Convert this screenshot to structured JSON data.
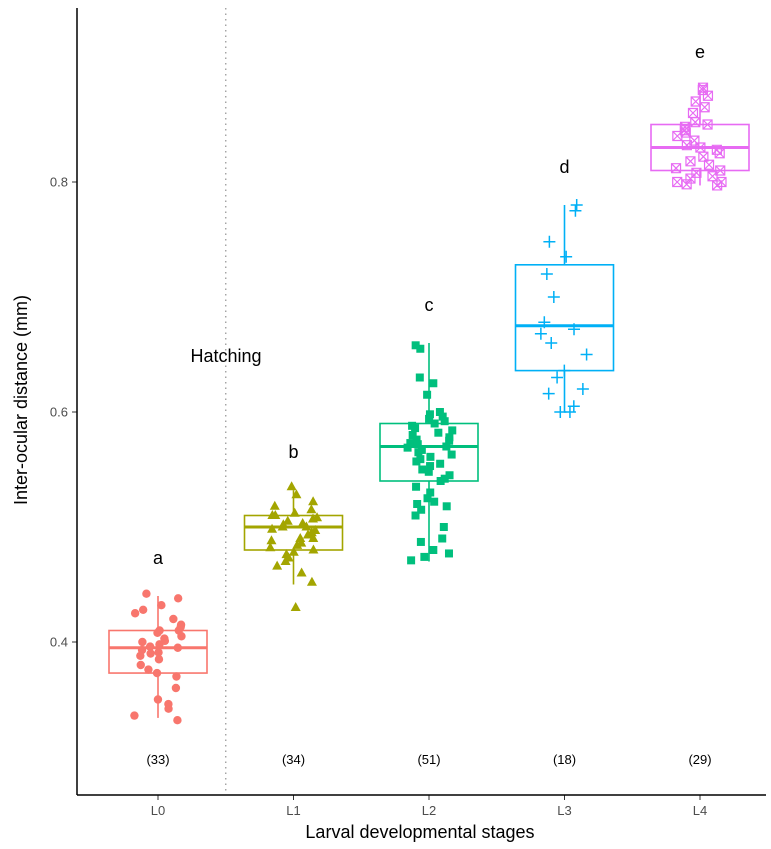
{
  "chart_data": {
    "type": "box",
    "xlabel": "Larval developmental stages",
    "ylabel": "Inter-ocular distance (mm)",
    "ylim": [
      0.29,
      0.945
    ],
    "yticks": [
      0.4,
      0.6,
      0.8
    ],
    "ytick_labels": [
      "0.4",
      "0.6",
      "0.8"
    ],
    "categories": [
      "L0",
      "L1",
      "L2",
      "L3",
      "L4"
    ],
    "grid": false,
    "legend": "none",
    "annotation": {
      "text": "Hatching",
      "divider_between": [
        "L0",
        "L1"
      ]
    },
    "groups": [
      {
        "name": "L0",
        "color": "#f8766d",
        "marker": "circle",
        "letter": "a",
        "n_label": "(33)",
        "box": {
          "min": 0.334,
          "q1": 0.373,
          "median": 0.395,
          "q3": 0.41,
          "max": 0.44
        },
        "points": [
          0.442,
          0.438,
          0.432,
          0.428,
          0.425,
          0.42,
          0.415,
          0.413,
          0.41,
          0.41,
          0.408,
          0.405,
          0.403,
          0.401,
          0.4,
          0.398,
          0.396,
          0.395,
          0.393,
          0.391,
          0.39,
          0.388,
          0.385,
          0.38,
          0.376,
          0.373,
          0.37,
          0.36,
          0.35,
          0.346,
          0.342,
          0.336,
          0.332
        ]
      },
      {
        "name": "L1",
        "color": "#a3a500",
        "marker": "triangle",
        "letter": "b",
        "n_label": "(34)",
        "box": {
          "min": 0.45,
          "q1": 0.48,
          "median": 0.5,
          "q3": 0.51,
          "max": 0.532
        },
        "points": [
          0.535,
          0.528,
          0.522,
          0.518,
          0.515,
          0.512,
          0.51,
          0.51,
          0.508,
          0.507,
          0.505,
          0.503,
          0.502,
          0.5,
          0.5,
          0.498,
          0.497,
          0.495,
          0.493,
          0.49,
          0.49,
          0.488,
          0.486,
          0.484,
          0.482,
          0.48,
          0.478,
          0.476,
          0.473,
          0.47,
          0.466,
          0.46,
          0.452,
          0.43
        ]
      },
      {
        "name": "L2",
        "color": "#00bf7d",
        "marker": "square",
        "letter": "c",
        "n_label": "(51)",
        "box": {
          "min": 0.47,
          "q1": 0.54,
          "median": 0.57,
          "q3": 0.59,
          "max": 0.66
        },
        "points": [
          0.658,
          0.655,
          0.63,
          0.625,
          0.615,
          0.6,
          0.598,
          0.596,
          0.594,
          0.592,
          0.59,
          0.588,
          0.586,
          0.584,
          0.582,
          0.58,
          0.578,
          0.576,
          0.575,
          0.573,
          0.572,
          0.57,
          0.569,
          0.567,
          0.565,
          0.563,
          0.561,
          0.559,
          0.557,
          0.555,
          0.553,
          0.55,
          0.548,
          0.545,
          0.542,
          0.54,
          0.535,
          0.53,
          0.525,
          0.522,
          0.52,
          0.518,
          0.515,
          0.51,
          0.5,
          0.49,
          0.487,
          0.48,
          0.477,
          0.474,
          0.471
        ]
      },
      {
        "name": "L3",
        "color": "#00b0f6",
        "marker": "plus",
        "letter": "d",
        "n_label": "(18)",
        "box": {
          "min": 0.6,
          "q1": 0.636,
          "median": 0.675,
          "q3": 0.728,
          "max": 0.78
        },
        "points": [
          0.78,
          0.775,
          0.748,
          0.735,
          0.72,
          0.7,
          0.678,
          0.672,
          0.668,
          0.66,
          0.65,
          0.636,
          0.63,
          0.62,
          0.616,
          0.605,
          0.6,
          0.6
        ]
      },
      {
        "name": "L4",
        "color": "#e76bf3",
        "marker": "square-cross",
        "letter": "e",
        "n_label": "(29)",
        "box": {
          "min": 0.797,
          "q1": 0.81,
          "median": 0.83,
          "q3": 0.85,
          "max": 0.88
        },
        "points": [
          0.882,
          0.88,
          0.875,
          0.87,
          0.865,
          0.86,
          0.852,
          0.85,
          0.848,
          0.845,
          0.843,
          0.84,
          0.836,
          0.832,
          0.83,
          0.828,
          0.825,
          0.822,
          0.818,
          0.815,
          0.812,
          0.81,
          0.808,
          0.805,
          0.803,
          0.8,
          0.8,
          0.798,
          0.797
        ]
      }
    ]
  }
}
